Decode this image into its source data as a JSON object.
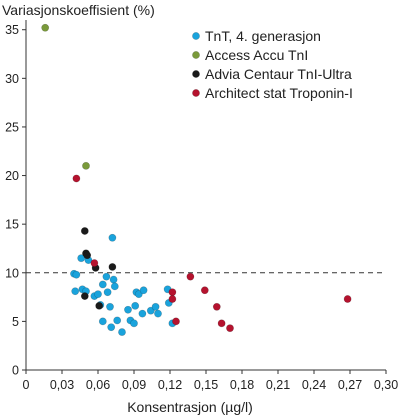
{
  "chart_data": {
    "type": "scatter",
    "xlabel": "Konsentrasjon (µg/l)",
    "ylabel": "Variasjonskoeffisient (%)",
    "xlim": [
      0,
      0.3
    ],
    "ylim": [
      0,
      36
    ],
    "x_ticks": [
      "0",
      "0,03",
      "0,06",
      "0,09",
      "0,12",
      "0,15",
      "0,18",
      "0,21",
      "0,24",
      "0,27",
      "0,30"
    ],
    "x_tick_values": [
      0,
      0.03,
      0.06,
      0.09,
      0.12,
      0.15,
      0.18,
      0.21,
      0.24,
      0.27,
      0.3
    ],
    "y_ticks": [
      "0",
      "5",
      "10",
      "15",
      "20",
      "25",
      "30",
      "35"
    ],
    "y_tick_values": [
      0,
      5,
      10,
      15,
      20,
      25,
      30,
      35
    ],
    "reference_line": {
      "y": 10,
      "style": "dashed"
    },
    "legend_position": "top-right",
    "series": [
      {
        "name": "TnT, 4. generasjon",
        "color": "#1aa3dc",
        "points": [
          [
            0.04,
            9.9
          ],
          [
            0.042,
            9.8
          ],
          [
            0.041,
            8.1
          ],
          [
            0.046,
            11.5
          ],
          [
            0.047,
            8.3
          ],
          [
            0.05,
            8.1
          ],
          [
            0.052,
            11.3
          ],
          [
            0.057,
            7.6
          ],
          [
            0.06,
            7.8
          ],
          [
            0.062,
            6.7
          ],
          [
            0.064,
            8.8
          ],
          [
            0.064,
            5.0
          ],
          [
            0.067,
            9.6
          ],
          [
            0.068,
            8.0
          ],
          [
            0.07,
            6.5
          ],
          [
            0.071,
            4.4
          ],
          [
            0.072,
            13.6
          ],
          [
            0.073,
            9.3
          ],
          [
            0.074,
            8.6
          ],
          [
            0.076,
            5.1
          ],
          [
            0.08,
            3.9
          ],
          [
            0.085,
            6.2
          ],
          [
            0.087,
            5.1
          ],
          [
            0.09,
            4.8
          ],
          [
            0.091,
            6.6
          ],
          [
            0.092,
            8.0
          ],
          [
            0.094,
            7.8
          ],
          [
            0.097,
            5.8
          ],
          [
            0.098,
            8.2
          ],
          [
            0.104,
            6.1
          ],
          [
            0.108,
            6.5
          ],
          [
            0.11,
            5.8
          ],
          [
            0.118,
            8.3
          ],
          [
            0.119,
            6.9
          ],
          [
            0.122,
            4.8
          ]
        ]
      },
      {
        "name": "Access Accu TnI",
        "color": "#7a9a3a",
        "points": [
          [
            0.016,
            35.2
          ],
          [
            0.05,
            21.0
          ]
        ]
      },
      {
        "name": "Advia Centaur TnI-Ultra",
        "color": "#1a1a1a",
        "points": [
          [
            0.049,
            14.3
          ],
          [
            0.05,
            12.0
          ],
          [
            0.051,
            11.8
          ],
          [
            0.049,
            7.6
          ],
          [
            0.058,
            10.5
          ],
          [
            0.061,
            6.6
          ],
          [
            0.072,
            10.6
          ]
        ]
      },
      {
        "name": "Architect stat Troponin-I",
        "color": "#b5122e",
        "points": [
          [
            0.042,
            19.7
          ],
          [
            0.057,
            11.0
          ],
          [
            0.122,
            8.0
          ],
          [
            0.122,
            7.3
          ],
          [
            0.125,
            5.0
          ],
          [
            0.137,
            9.6
          ],
          [
            0.149,
            8.2
          ],
          [
            0.159,
            6.5
          ],
          [
            0.163,
            4.8
          ],
          [
            0.17,
            4.3
          ],
          [
            0.268,
            7.3
          ]
        ]
      }
    ]
  }
}
